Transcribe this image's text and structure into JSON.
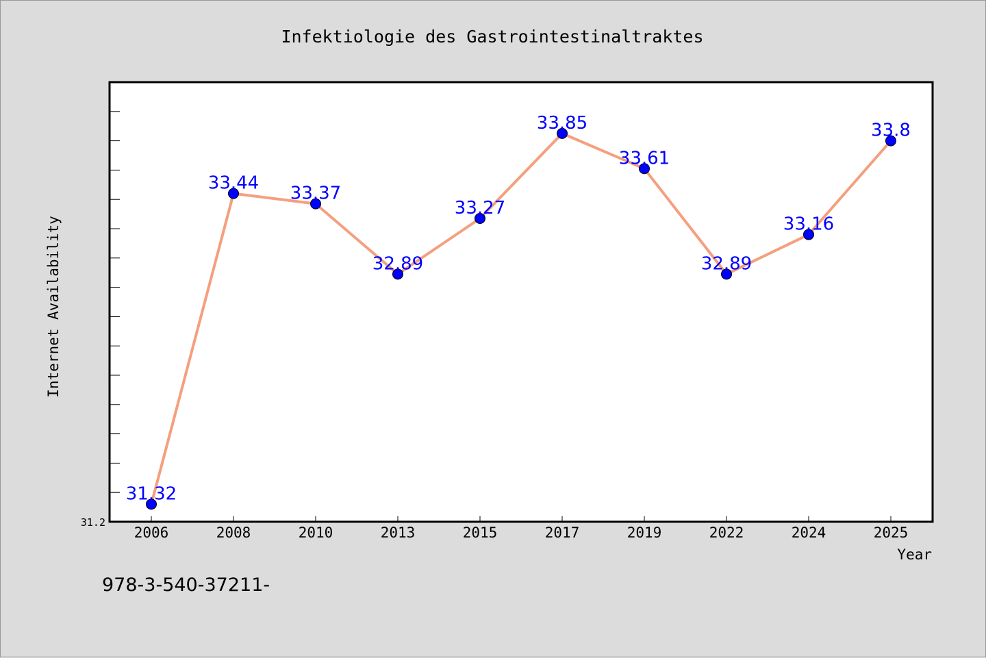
{
  "colors": {
    "background": "#dcdcdc",
    "plot_background": "#ffffff",
    "line": "#f4a07e",
    "marker": "#0000ff",
    "data_label": "#0000ff",
    "text": "#000000"
  },
  "footer_text": "978-3-540-37211-",
  "chart_data": {
    "type": "line",
    "title": "Infektiologie des Gastrointestinaltraktes",
    "xlabel": "Year",
    "ylabel": "Internet Availability",
    "categories": [
      "2006",
      "2008",
      "2010",
      "2013",
      "2015",
      "2017",
      "2019",
      "2022",
      "2024",
      "2025"
    ],
    "series": [
      {
        "values": [
          31.32,
          33.44,
          33.37,
          32.89,
          33.27,
          33.85,
          33.61,
          32.89,
          33.16,
          33.8
        ],
        "labels": [
          "31.32",
          "33.44",
          "33.37",
          "32.89",
          "33.27",
          "33.85",
          "33.61",
          "32.89",
          "33.16",
          "33.8"
        ]
      }
    ],
    "yticks": [
      "31.2"
    ],
    "ylim": [
      31.2,
      34.2
    ],
    "y_minor_tick_step": 0.2,
    "grid": false,
    "legend": "none"
  }
}
